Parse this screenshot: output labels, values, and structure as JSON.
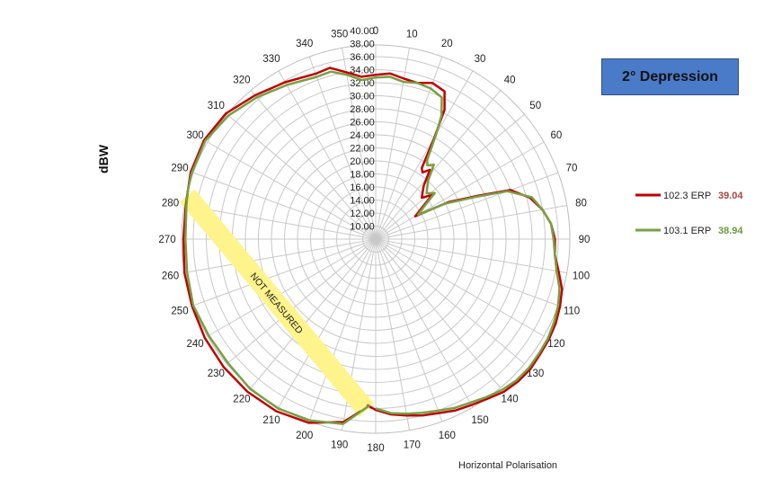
{
  "title_box": "2° Depression",
  "chart_data": {
    "type": "polar-line",
    "title": "2° Depression",
    "ylabel": "dBW",
    "xlabel": "Horizontal Polarisation",
    "r_range": [
      10,
      40
    ],
    "r_ticks": [
      "10.00",
      "12.00",
      "14.00",
      "16.00",
      "18.00",
      "20.00",
      "22.00",
      "24.00",
      "26.00",
      "28.00",
      "30.00",
      "32.00",
      "34.00",
      "36.00",
      "38.00",
      "40.00"
    ],
    "angle_ticks": [
      "0",
      "10",
      "20",
      "30",
      "40",
      "50",
      "60",
      "70",
      "80",
      "90",
      "100",
      "110",
      "120",
      "130",
      "140",
      "150",
      "160",
      "170",
      "180",
      "190",
      "200",
      "210",
      "220",
      "230",
      "240",
      "250",
      "260",
      "270",
      "280",
      "290",
      "300",
      "310",
      "320",
      "330",
      "340",
      "350"
    ],
    "annotation": {
      "text": "NOT MEASURED",
      "from_deg": 180,
      "to_deg": 285
    },
    "grid": true,
    "legend_position": "right",
    "series": [
      {
        "name": "102.3 ERP",
        "max_value": "39.04",
        "color": "#c00000",
        "points": [
          [
            185,
            34.5
          ],
          [
            190,
            36.5
          ],
          [
            200,
            38.0
          ],
          [
            210,
            38.5
          ],
          [
            220,
            38.6
          ],
          [
            230,
            38.5
          ],
          [
            240,
            38.3
          ],
          [
            250,
            38.0
          ],
          [
            260,
            37.8
          ],
          [
            270,
            37.5
          ],
          [
            280,
            37.6
          ],
          [
            285,
            37.8
          ],
          [
            290,
            38.2
          ],
          [
            300,
            38.4
          ],
          [
            310,
            38.0
          ],
          [
            320,
            36.8
          ],
          [
            330,
            35.8
          ],
          [
            340,
            35.0
          ],
          [
            345,
            35.2
          ],
          [
            350,
            34.0
          ],
          [
            355,
            33.0
          ],
          [
            0,
            33.2
          ],
          [
            5,
            33.5
          ],
          [
            10,
            33.0
          ],
          [
            15,
            32.8
          ],
          [
            20,
            33.5
          ],
          [
            25,
            33.0
          ],
          [
            28,
            30.5
          ],
          [
            30,
            26.0
          ],
          [
            33,
            21.0
          ],
          [
            35,
            20.5
          ],
          [
            38,
            21.5
          ],
          [
            42,
            19.0
          ],
          [
            48,
            17.5
          ],
          [
            52,
            19.0
          ],
          [
            56,
            16.5
          ],
          [
            60,
            15.0
          ],
          [
            63,
            20.5
          ],
          [
            67,
            25.0
          ],
          [
            70,
            30.0
          ],
          [
            75,
            32.5
          ],
          [
            80,
            34.0
          ],
          [
            85,
            35.0
          ],
          [
            90,
            35.5
          ],
          [
            95,
            35.6
          ],
          [
            100,
            36.5
          ],
          [
            105,
            37.6
          ],
          [
            110,
            38.1
          ],
          [
            115,
            38.5
          ],
          [
            120,
            38.7
          ],
          [
            125,
            38.8
          ],
          [
            130,
            39.0
          ],
          [
            135,
            38.9
          ],
          [
            140,
            38.6
          ],
          [
            145,
            37.9
          ],
          [
            150,
            37.4
          ],
          [
            155,
            37.0
          ],
          [
            160,
            36.4
          ],
          [
            165,
            36.0
          ],
          [
            170,
            35.5
          ],
          [
            175,
            35.0
          ],
          [
            180,
            34.2
          ],
          [
            183,
            33.5
          ]
        ]
      },
      {
        "name": "103.1 ERP",
        "max_value": "38.94",
        "color": "#77a043",
        "points": [
          [
            182,
            33.5
          ],
          [
            190,
            36.8
          ],
          [
            200,
            37.6
          ],
          [
            210,
            38.0
          ],
          [
            220,
            38.0
          ],
          [
            230,
            37.6
          ],
          [
            240,
            37.6
          ],
          [
            250,
            37.8
          ],
          [
            260,
            37.4
          ],
          [
            270,
            37.2
          ],
          [
            280,
            37.5
          ],
          [
            285,
            37.8
          ],
          [
            290,
            38.0
          ],
          [
            300,
            38.2
          ],
          [
            310,
            37.5
          ],
          [
            320,
            36.4
          ],
          [
            330,
            35.3
          ],
          [
            340,
            34.5
          ],
          [
            345,
            34.6
          ],
          [
            350,
            33.6
          ],
          [
            355,
            32.5
          ],
          [
            0,
            32.8
          ],
          [
            5,
            33.0
          ],
          [
            10,
            32.5
          ],
          [
            15,
            32.8
          ],
          [
            20,
            32.6
          ],
          [
            25,
            32.0
          ],
          [
            28,
            29.5
          ],
          [
            30,
            26.5
          ],
          [
            33,
            22.5
          ],
          [
            35,
            21.8
          ],
          [
            38,
            22.5
          ],
          [
            42,
            20.0
          ],
          [
            48,
            18.5
          ],
          [
            52,
            19.5
          ],
          [
            56,
            17.0
          ],
          [
            60,
            15.5
          ],
          [
            63,
            20.0
          ],
          [
            67,
            24.5
          ],
          [
            70,
            29.5
          ],
          [
            75,
            32.8
          ],
          [
            80,
            34.0
          ],
          [
            85,
            35.0
          ],
          [
            90,
            35.3
          ],
          [
            95,
            35.6
          ],
          [
            100,
            36.2
          ],
          [
            105,
            37.2
          ],
          [
            110,
            37.8
          ],
          [
            115,
            38.2
          ],
          [
            120,
            38.5
          ],
          [
            125,
            38.6
          ],
          [
            130,
            38.7
          ],
          [
            135,
            38.6
          ],
          [
            140,
            38.2
          ],
          [
            145,
            37.6
          ],
          [
            150,
            37.0
          ],
          [
            155,
            36.6
          ],
          [
            160,
            36.0
          ],
          [
            165,
            35.6
          ],
          [
            170,
            35.2
          ],
          [
            175,
            34.8
          ],
          [
            180,
            34.0
          ]
        ]
      }
    ]
  }
}
